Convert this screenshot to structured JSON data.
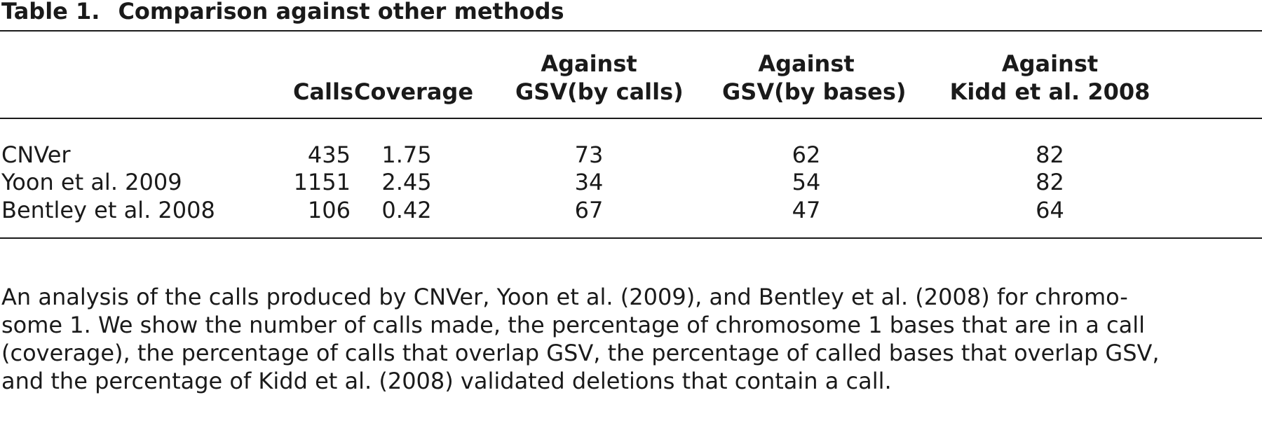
{
  "table": {
    "label": "Table 1.",
    "title": "Comparison against other methods",
    "columns": {
      "calls": "Calls",
      "coverage": "Coverage",
      "gsv_calls_top": "Against",
      "gsv_calls_bottom": "GSV(by calls)",
      "gsv_bases_top": "Against",
      "gsv_bases_bottom": "GSV(by bases)",
      "kidd_top": "Against",
      "kidd_bottom": "Kidd et al. 2008"
    },
    "rows": [
      {
        "method": "CNVer",
        "calls": "435",
        "coverage": "1.75",
        "gsv_calls": "73",
        "gsv_bases": "62",
        "kidd": "82"
      },
      {
        "method": "Yoon et al. 2009",
        "calls": "1151",
        "coverage": "2.45",
        "gsv_calls": "34",
        "gsv_bases": "54",
        "kidd": "82"
      },
      {
        "method": "Bentley et al. 2008",
        "calls": "106",
        "coverage": "0.42",
        "gsv_calls": "67",
        "gsv_bases": "47",
        "kidd": "64"
      }
    ],
    "footnote_lines": [
      "An analysis of the calls produced by CNVer, Yoon et al. (2009), and Bentley et al. (2008) for chromo-",
      "some 1. We show the number of calls made, the percentage of chromosome 1 bases that are in a call",
      "(coverage), the percentage of calls that overlap GSV, the percentage of called bases that overlap GSV,",
      "and the percentage of Kidd et al. (2008) validated deletions that contain a call."
    ]
  }
}
